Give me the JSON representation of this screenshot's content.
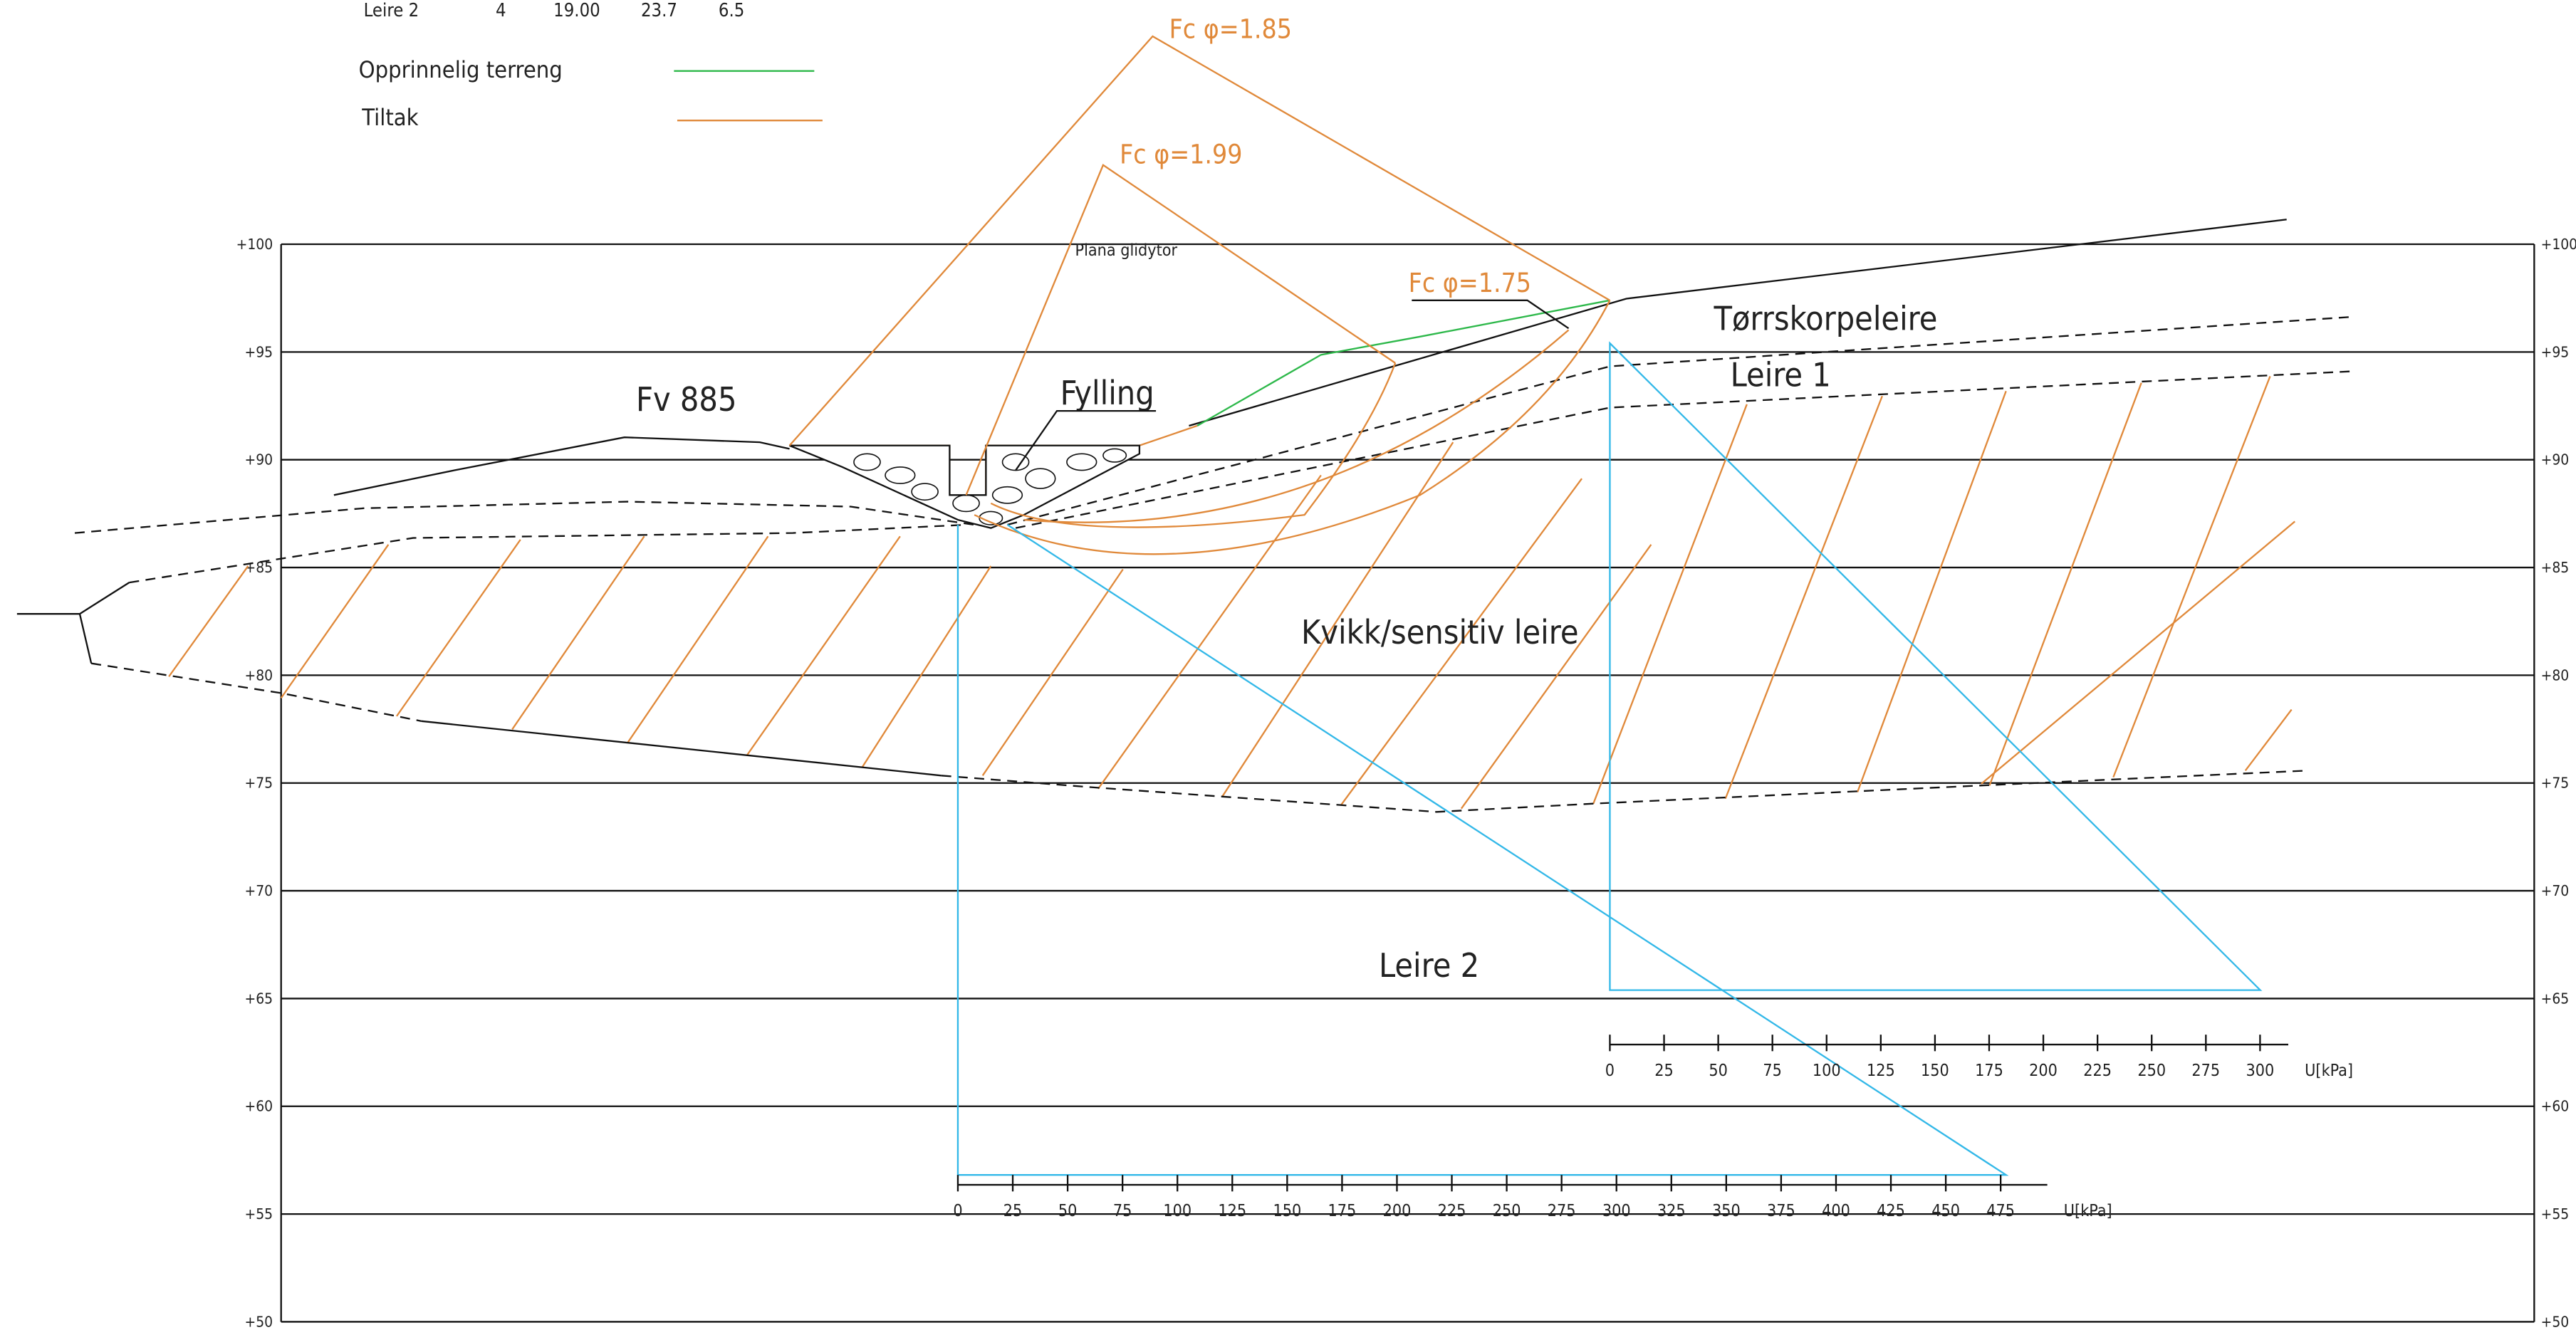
{
  "material_table": {
    "row": [
      "Leire 2",
      "4",
      "19.00",
      "23.7",
      "6.5"
    ]
  },
  "legend": [
    {
      "label": "Opprinnelig terreng",
      "color": "#2db84a"
    },
    {
      "label": "Tiltak",
      "color": "#e0893a"
    }
  ],
  "annotations": {
    "fc_185": "Fc φ=1.85",
    "fc_199": "Fc φ=1.99",
    "fc_175": "Fc φ=1.75",
    "plana": "Plana glidytor",
    "road": "Fv 885",
    "fill": "Fylling",
    "crust": "Tørrskorpeleire",
    "clay1": "Leire 1",
    "quick": "Kvikk/sensitiv leire",
    "clay2": "Leire 2"
  },
  "elevation_axis": {
    "ticks": [
      {
        "value": 100,
        "label": "+100"
      },
      {
        "value": 95,
        "label": "+95"
      },
      {
        "value": 90,
        "label": "+90"
      },
      {
        "value": 85,
        "label": "+85"
      },
      {
        "value": 80,
        "label": "+80"
      },
      {
        "value": 75,
        "label": "+75"
      },
      {
        "value": 70,
        "label": "+70"
      },
      {
        "value": 65,
        "label": "+65"
      },
      {
        "value": 60,
        "label": "+60"
      },
      {
        "value": 55,
        "label": "+55"
      },
      {
        "value": 50,
        "label": "+50"
      }
    ]
  },
  "pressure_axis_upper": {
    "ticks": [
      0,
      25,
      50,
      75,
      100,
      125,
      150,
      175,
      200,
      225,
      250,
      275,
      300
    ],
    "unit": "U[kPa]"
  },
  "pressure_axis_lower": {
    "ticks": [
      0,
      25,
      50,
      75,
      100,
      125,
      150,
      175,
      200,
      225,
      250,
      275,
      300,
      325,
      350,
      375,
      400,
      425,
      450,
      475
    ],
    "unit": "U[kPa]"
  }
}
